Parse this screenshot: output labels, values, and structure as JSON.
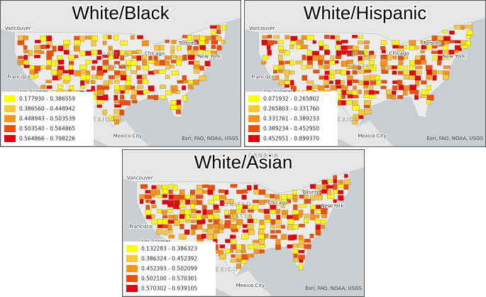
{
  "panels": [
    {
      "title": "White/Black",
      "legend": [
        {
          "label": "0.177930 - 0.386559",
          "color": "#ffff00"
        },
        {
          "label": "0.386560 - 0.448942",
          "color": "#f9c83c"
        },
        {
          "label": "0.448943 - 0.503539",
          "color": "#f7941d"
        },
        {
          "label": "0.503540 - 0.564865",
          "color": "#f04e0e"
        },
        {
          "label": "0.564866 - 0.798226",
          "color": "#e4000f"
        }
      ],
      "places": {
        "vancouver": "Vancouver",
        "francisco": "Francisco",
        "losangeles": "Los Angeles",
        "chicago": "Chicago",
        "toronto": "Toronto",
        "newyork": "New York",
        "united": "UNITED",
        "states": "STATES",
        "mexico": "MÉXICO",
        "mexicocity": "Mexico City"
      },
      "attribution": "Esri, FAO, NOAA, USGS"
    },
    {
      "title": "White/Hispanic",
      "legend": [
        {
          "label": "0.071932 - 0.265802",
          "color": "#ffff00"
        },
        {
          "label": "0.265803 - 0.331760",
          "color": "#f9c83c"
        },
        {
          "label": "0.331761 - 0.389233",
          "color": "#f7941d"
        },
        {
          "label": "0.389234 - 0.452950",
          "color": "#f04e0e"
        },
        {
          "label": "0.452951 - 0.899370",
          "color": "#e4000f"
        }
      ],
      "places": {
        "vancouver": "Vancouver",
        "francisco": "Francisco",
        "losangeles": "Los Angeles",
        "chicago": "Chicago",
        "toronto": "Toronto",
        "newyork": "New York",
        "united": "UNITED",
        "states": "STATES",
        "mexico": "MÉXICO",
        "mexicocity": "Mexico City"
      },
      "attribution": "Esri, FAO, NOAA, USGS"
    },
    {
      "title": "White/Asian",
      "legend": [
        {
          "label": "0.132283 - 0.386323",
          "color": "#ffff00"
        },
        {
          "label": "0.386324 - 0.452392",
          "color": "#f9c83c"
        },
        {
          "label": "0.452393 - 0.502099",
          "color": "#f7941d"
        },
        {
          "label": "0.502100 - 0.570301",
          "color": "#f04e0e"
        },
        {
          "label": "0.570302 - 0.939105",
          "color": "#e4000f"
        }
      ],
      "places": {
        "canada": "CANADA",
        "vancouver": "Vancouver",
        "francisco": "Francisco",
        "losangeles": "Los Angeles",
        "chicago": "Chicago",
        "toronto": "Toronto",
        "newyork": "New York",
        "united": "UNITED",
        "states": "STATES",
        "mexico": "MÉXICO",
        "mexicocity": "Mexico City"
      },
      "attribution": "Esri, FAO, NOAA, USGS"
    }
  ]
}
